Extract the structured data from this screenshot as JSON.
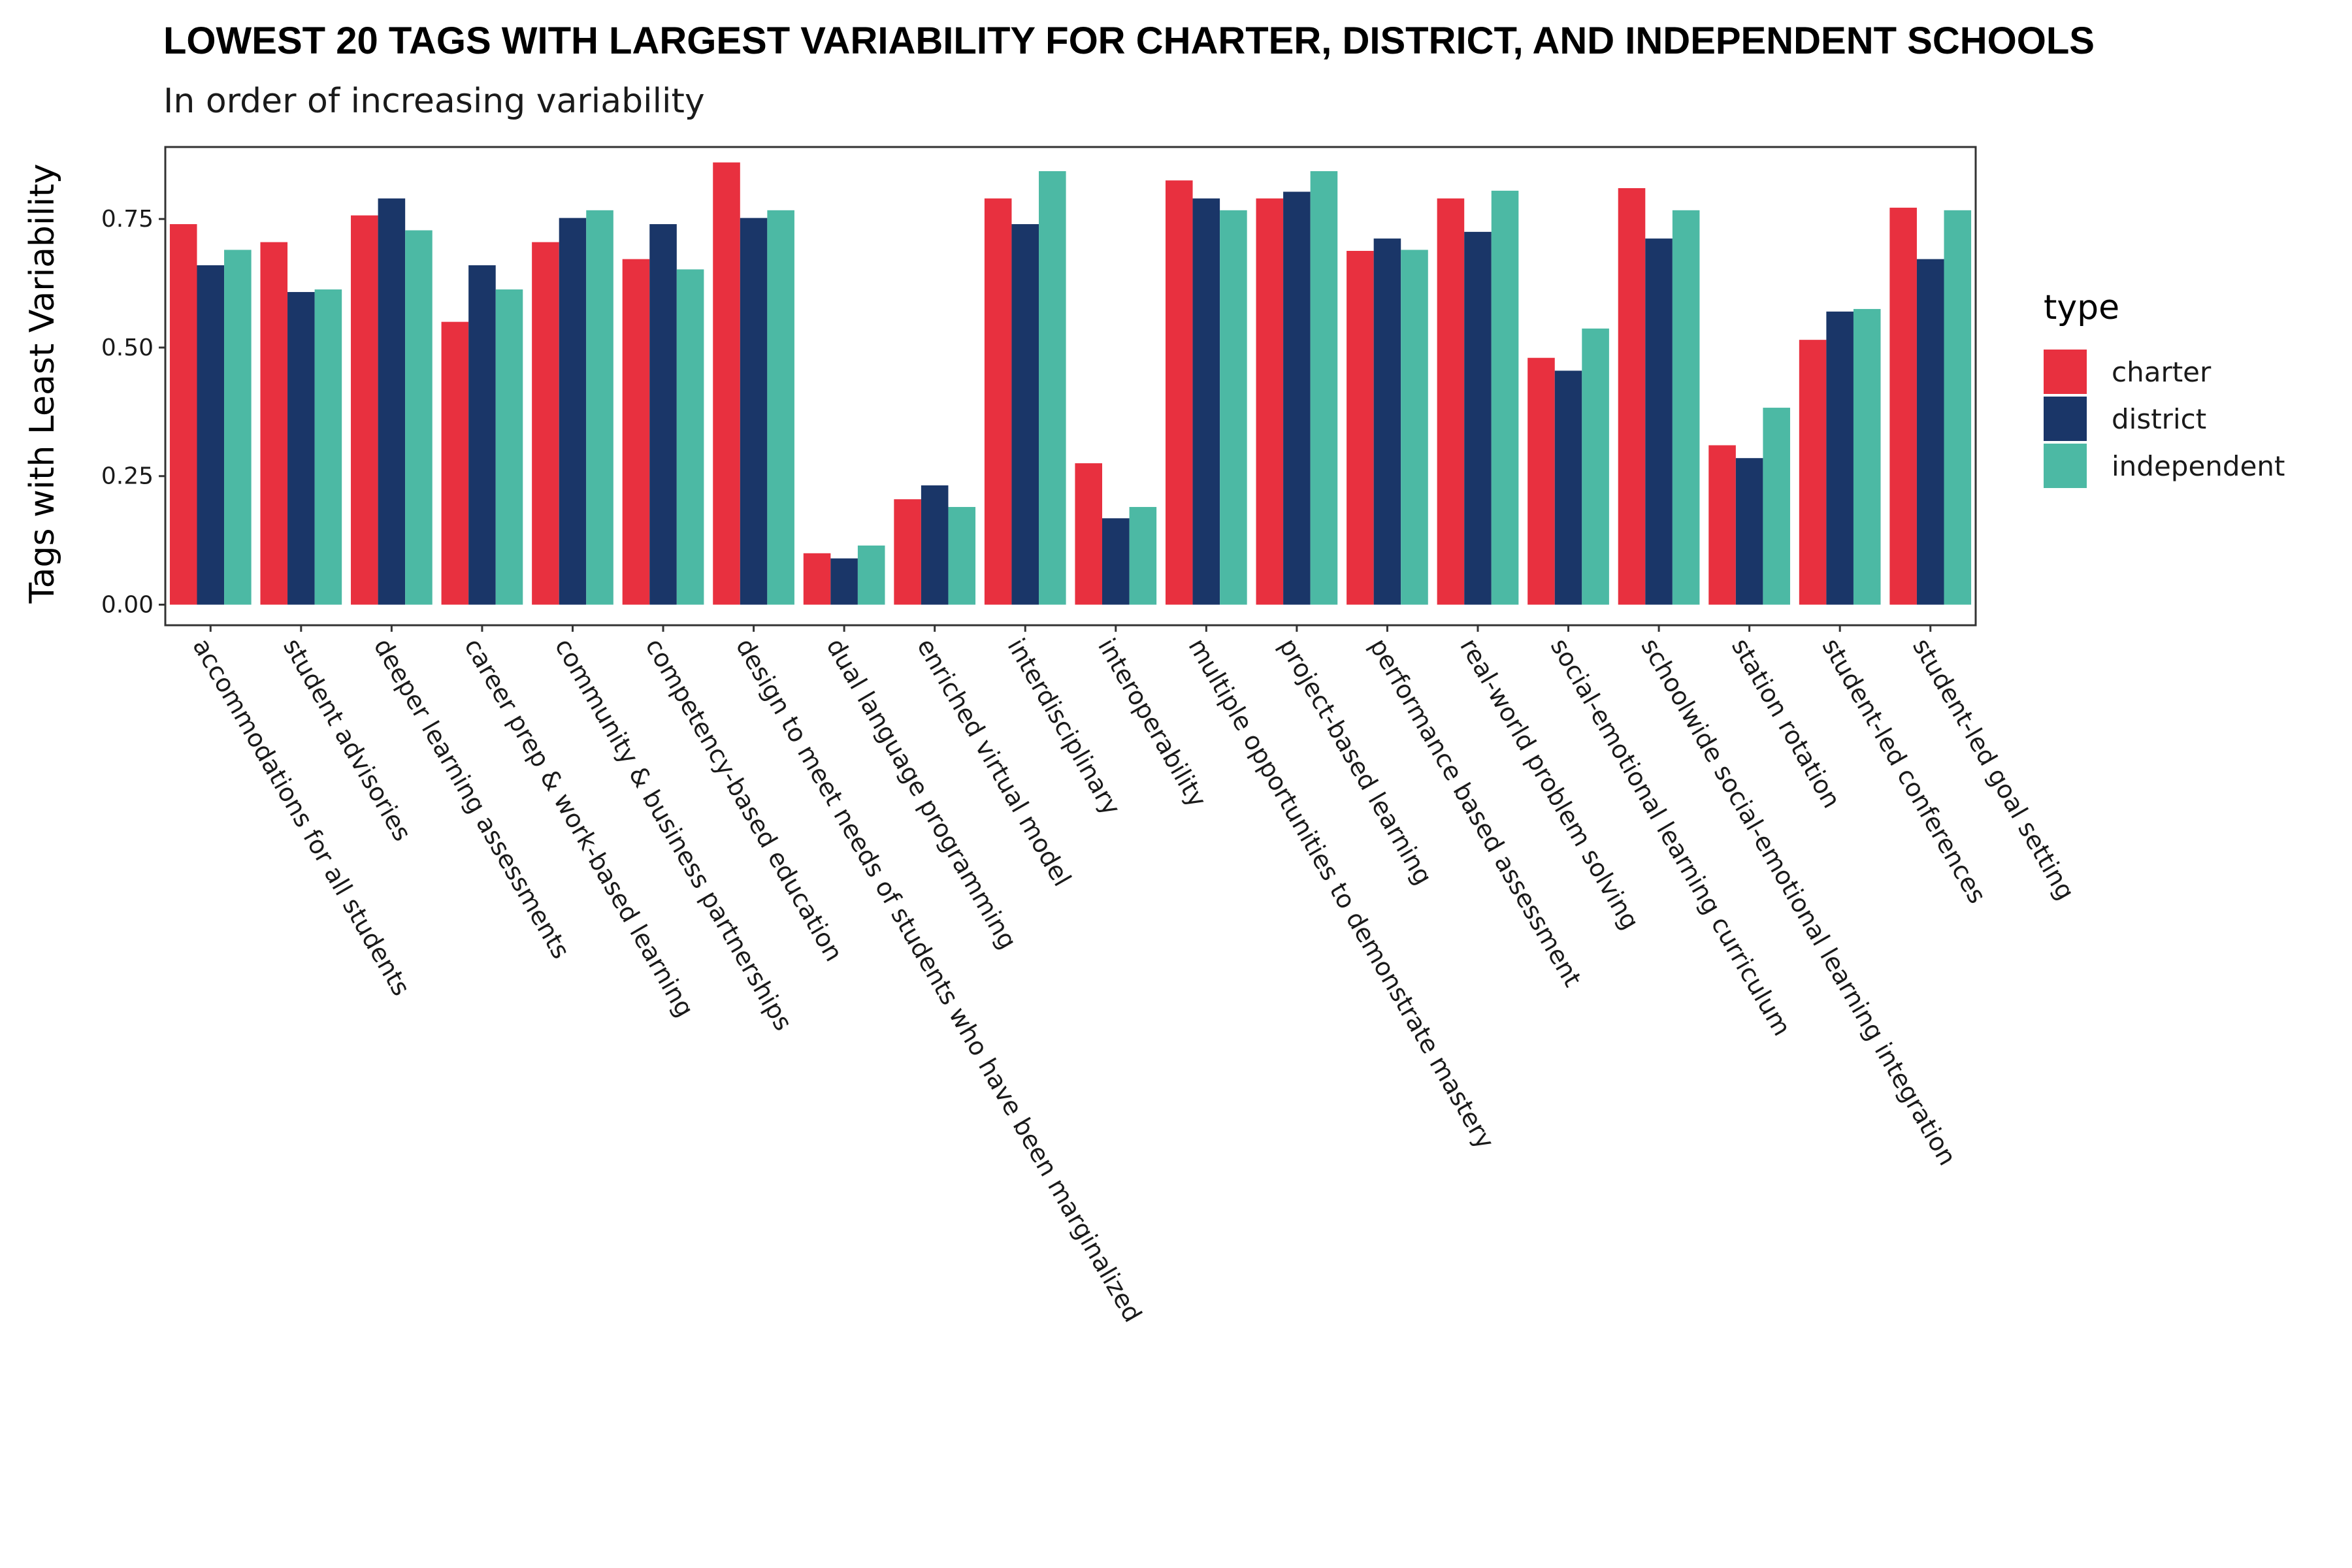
{
  "chart_data": {
    "type": "bar",
    "title": "LOWEST 20 TAGS WITH LARGEST VARIABILITY FOR CHARTER, DISTRICT, AND INDEPENDENT SCHOOLS",
    "subtitle": "In order of increasing variability",
    "xlabel": "",
    "ylabel": "Tags with Least Variability",
    "ylim": [
      -0.04,
      0.89
    ],
    "yticks": [
      0.0,
      0.25,
      0.5,
      0.75
    ],
    "ytick_labels": [
      "0.00",
      "0.25",
      "0.50",
      "0.75"
    ],
    "grid": false,
    "legend_position": "right",
    "legend_title": "type",
    "categories": [
      "accommodations for all students",
      "student advisories",
      "deeper learning assessments",
      "career prep & work-based learning",
      "community & business partnerships",
      "competency-based education",
      "design to meet needs of students who have been marginalized",
      "dual language programming",
      "enriched virtual model",
      "interdisciplinary",
      "interoperability",
      "multiple opportunities to demonstrate mastery",
      "project-based learning",
      "performance based assessment",
      "real-world problem solving",
      "social-emotional learning curriculum",
      "schoolwide social-emotional learning integration",
      "station rotation",
      "student-led conferences",
      "student-led goal setting"
    ],
    "series": [
      {
        "name": "charter",
        "color": "#e8303f",
        "values": [
          0.74,
          0.705,
          0.757,
          0.55,
          0.705,
          0.672,
          0.86,
          0.1,
          0.205,
          0.79,
          0.275,
          0.825,
          0.79,
          0.688,
          0.79,
          0.48,
          0.81,
          0.31,
          0.515,
          0.772
        ]
      },
      {
        "name": "district",
        "color": "#1a3668",
        "values": [
          0.66,
          0.608,
          0.79,
          0.66,
          0.752,
          0.74,
          0.752,
          0.09,
          0.232,
          0.74,
          0.168,
          0.79,
          0.803,
          0.712,
          0.725,
          0.455,
          0.712,
          0.285,
          0.57,
          0.672
        ]
      },
      {
        "name": "independent",
        "color": "#4cb9a4",
        "values": [
          0.69,
          0.613,
          0.728,
          0.613,
          0.767,
          0.652,
          0.767,
          0.115,
          0.19,
          0.843,
          0.19,
          0.767,
          0.843,
          0.69,
          0.805,
          0.537,
          0.767,
          0.383,
          0.575,
          0.767
        ]
      }
    ]
  }
}
